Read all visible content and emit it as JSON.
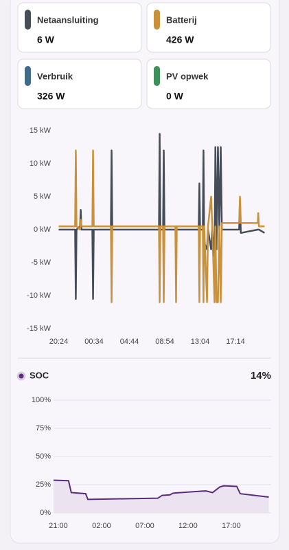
{
  "cards": [
    {
      "name": "Netaansluiting",
      "value": "6 W",
      "color": "#474d57"
    },
    {
      "name": "Batterij",
      "value": "426 W",
      "color": "#c9923a"
    },
    {
      "name": "Verbruik",
      "value": "326 W",
      "color": "#3f6a8a"
    },
    {
      "name": "PV opwek",
      "value": "0 W",
      "color": "#3f8f5a"
    }
  ],
  "chart_data": [
    {
      "type": "line",
      "x": [
        "20:24",
        "22:20",
        "22:25",
        "22:30",
        "22:55",
        "23:00",
        "23:05",
        "00:22",
        "00:27",
        "00:32",
        "02:33",
        "02:38",
        "02:43",
        "08:13",
        "08:18",
        "08:23",
        "08:42",
        "08:47",
        "08:52",
        "10:09",
        "10:14",
        "10:19",
        "12:54",
        "12:59",
        "13:04",
        "13:23",
        "13:28",
        "13:33",
        "13:53",
        "14:00",
        "14:22",
        "14:30",
        "14:46",
        "14:52",
        "15:00",
        "15:10",
        "15:20",
        "15:30",
        "15:38",
        "17:40",
        "17:46",
        "17:52",
        "19:52",
        "19:55",
        "20:00",
        "20:40"
      ],
      "series": [
        {
          "name": "Netaansluiting",
          "color": "#474d57",
          "values": [
            0,
            0,
            -10.5,
            0,
            0.5,
            3,
            0,
            0,
            -10.5,
            0,
            0,
            12,
            0,
            0,
            14.5,
            0,
            0,
            12,
            0,
            0,
            0.5,
            0,
            0,
            7,
            0,
            0,
            12,
            -2,
            -3,
            0,
            -3,
            0,
            -4,
            12.5,
            -3,
            12.5,
            0,
            12.5,
            0,
            0,
            4.5,
            -0.5,
            0,
            0,
            0,
            -0.5
          ]
        },
        {
          "name": "Batterij",
          "color": "#c9923a",
          "values": [
            0.5,
            0.5,
            12,
            0.5,
            0,
            1.5,
            0.5,
            0.5,
            12,
            0.5,
            0.5,
            -11,
            0.5,
            0.5,
            -11,
            0.5,
            0.5,
            -11,
            0.5,
            0.5,
            -11,
            0.5,
            0.5,
            -11,
            0.5,
            0.5,
            -11,
            0.5,
            -11,
            0.5,
            5,
            0.5,
            -11,
            0.5,
            -11,
            -11,
            0.5,
            -11,
            1,
            1,
            5,
            1,
            1,
            2.5,
            0.5,
            0.5
          ]
        }
      ],
      "ylim": [
        -15,
        15
      ],
      "yticks": [
        {
          "value": 15,
          "label": "15 kW"
        },
        {
          "value": 10,
          "label": "10 kW"
        },
        {
          "value": 5,
          "label": "5 kW"
        },
        {
          "value": 0,
          "label": "0 kW"
        },
        {
          "value": -5,
          "label": "-5 kW"
        },
        {
          "value": -10,
          "label": "-10 kW"
        },
        {
          "value": -15,
          "label": "-15 kW"
        }
      ],
      "xticks": [
        "20:24",
        "00:34",
        "04:44",
        "08:54",
        "13:04",
        "17:14"
      ]
    },
    {
      "type": "area",
      "series": [
        {
          "name": "SOC",
          "color": "#5b2a7a",
          "values": [
            29,
            28.5,
            18,
            17,
            12,
            13,
            15.5,
            16,
            17.5,
            19.5,
            18,
            23,
            24,
            23.5,
            17,
            14
          ]
        }
      ],
      "x": [
        "20:27",
        "22:11",
        "22:30",
        "00:10",
        "00:25",
        "08:30",
        "09:00",
        "09:55",
        "10:15",
        "14:03",
        "14:50",
        "15:40",
        "16:08",
        "17:38",
        "18:02",
        "21:20"
      ],
      "current_label": "14%",
      "ylim": [
        0,
        100
      ],
      "yticks": [
        {
          "value": 100,
          "label": "100%"
        },
        {
          "value": 75,
          "label": "75%"
        },
        {
          "value": 50,
          "label": "50%"
        },
        {
          "value": 25,
          "label": "25%"
        },
        {
          "value": 0,
          "label": "0%"
        }
      ],
      "xticks": [
        "21:00",
        "02:00",
        "07:00",
        "12:00",
        "17:00"
      ]
    }
  ]
}
